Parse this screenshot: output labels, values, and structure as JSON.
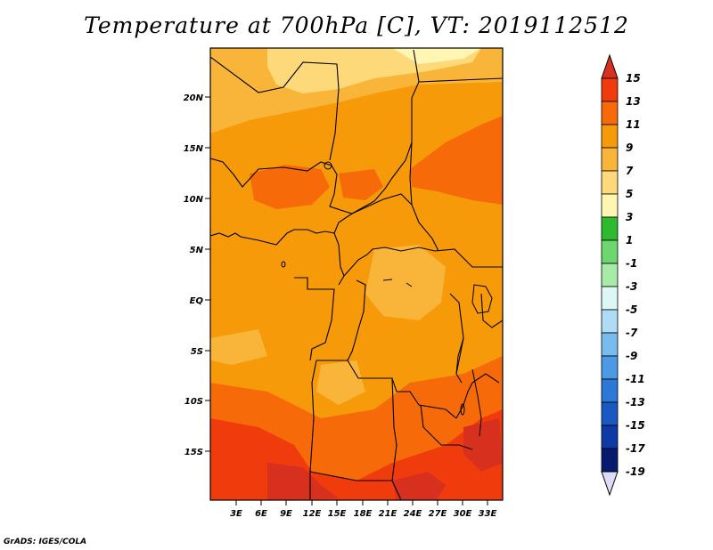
{
  "title": "Temperature at 700hPa [C], VT: 2019112512",
  "credit": "GrADS: IGES/COLA",
  "map": {
    "lon_labels": [
      "3E",
      "6E",
      "9E",
      "12E",
      "15E",
      "18E",
      "21E",
      "24E",
      "27E",
      "30E",
      "33E"
    ],
    "lat_labels": [
      "20N",
      "15N",
      "10N",
      "5N",
      "EQ",
      "5S",
      "10S",
      "15S"
    ]
  },
  "colorbar": {
    "labels": [
      "15",
      "13",
      "11",
      "9",
      "7",
      "5",
      "3",
      "1",
      "-1",
      "-3",
      "-5",
      "-7",
      "-9",
      "-11",
      "-13",
      "-15",
      "-17",
      "-19"
    ],
    "colors": [
      "#d7301f",
      "#f03c0c",
      "#f66a0a",
      "#f79a0a",
      "#f9b53a",
      "#fdd97a",
      "#fff6b4",
      "#2eb92e",
      "#6ed66e",
      "#a8eaa8",
      "#dcf7f5",
      "#aedcf5",
      "#78bbee",
      "#4c99e6",
      "#2c78d6",
      "#1a58c2",
      "#0e3aa8",
      "#061a6e",
      "#dcdcf7"
    ]
  }
}
